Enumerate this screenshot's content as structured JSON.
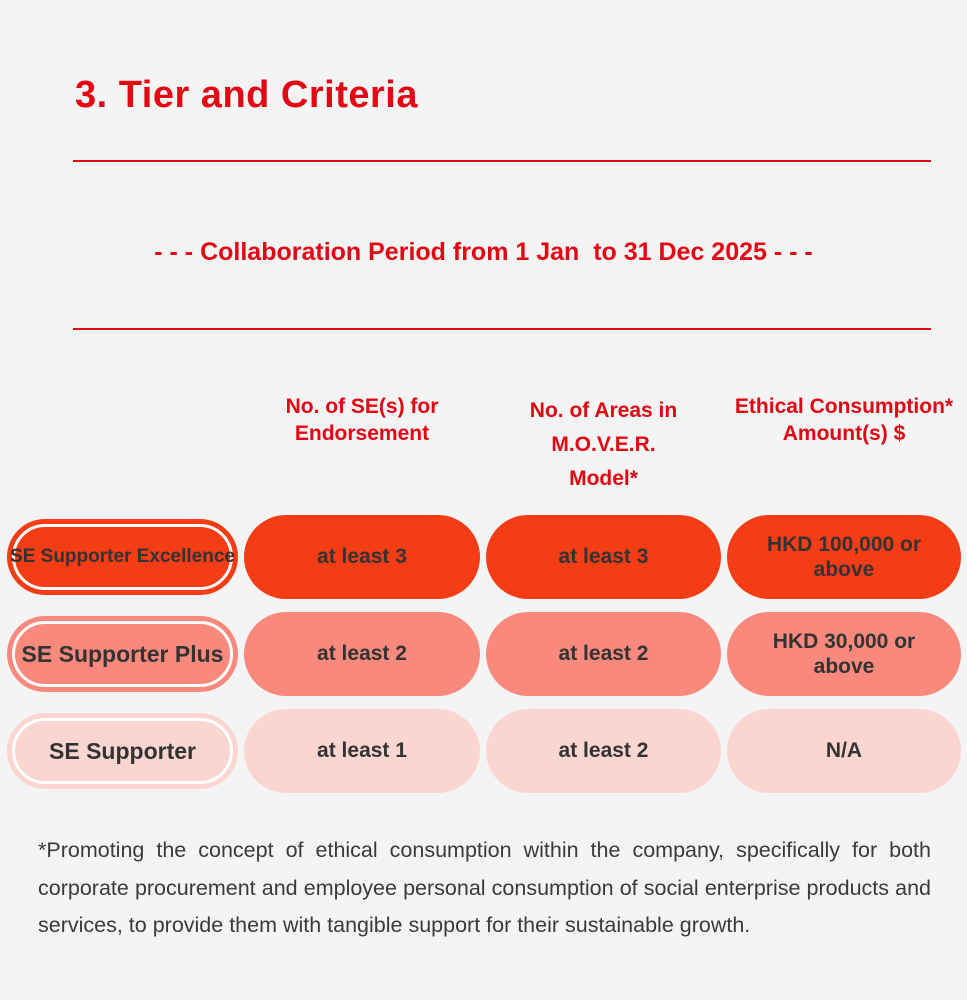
{
  "page": {
    "title": "3. Tier and Criteria",
    "subtitle": "- - - Collaboration Period from 1 Jan  to 31 Dec 2025 - - -",
    "background_color": "#f5f4f4",
    "accent_red": "#e30613",
    "text_dark": "#333333"
  },
  "table": {
    "headers": [
      "No. of SE(s) for\nEndorsement",
      "No. of Areas in\nM.O.V.E.R.\nModel*",
      "Ethical Consumption*\nAmount(s)  $"
    ],
    "rows": [
      {
        "label": "SE Supporter Excellence",
        "color": "#f43c15",
        "cells": [
          "at least 3",
          "at least 3",
          "HKD 100,000 or above"
        ]
      },
      {
        "label": "SE Supporter Plus",
        "color": "#f9897c",
        "cells": [
          "at least 2",
          "at least 2",
          "HKD 30,000 or above"
        ]
      },
      {
        "label": "SE Supporter",
        "color": "#fbd6d1",
        "cells": [
          "at least 1",
          "at least 2",
          "N/A"
        ]
      }
    ]
  },
  "footnote": "*Promoting the concept of ethical consumption within the company, specifically for both corporate procurement and employee personal consumption of social enterprise products and services, to provide them with tangible support for their sustainable growth."
}
